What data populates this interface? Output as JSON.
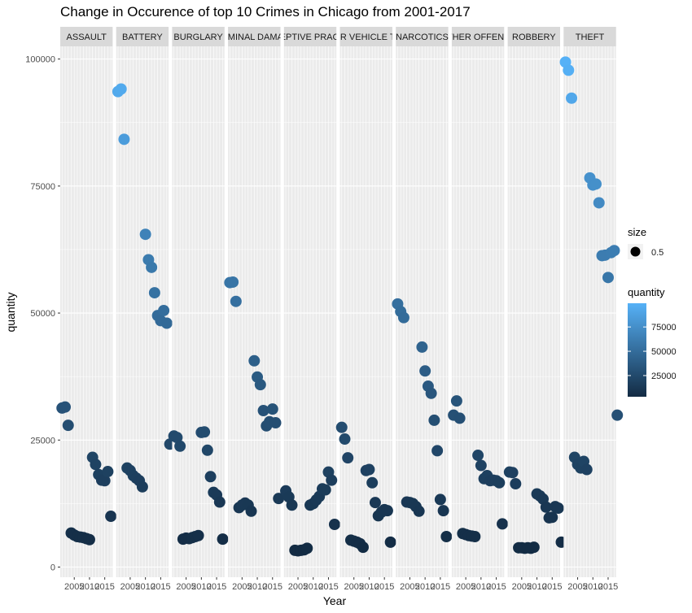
{
  "chart_data": {
    "type": "scatter",
    "title": "Change in Occurence of top 10 Crimes in Chicago from 2001-2017",
    "xlabel": "Year",
    "ylabel": "quantity",
    "xlim": [
      2000.4,
      2017.6
    ],
    "ylim": [
      -2000,
      102500
    ],
    "y_ticks": [
      0,
      25000,
      50000,
      75000,
      100000
    ],
    "y_tick_labels": [
      "0",
      "25000",
      "50000",
      "75000",
      "100000"
    ],
    "x_ticks": [
      2005,
      2010,
      2015
    ],
    "x_tick_labels": [
      "2005",
      "2010",
      "2015"
    ],
    "grid": true,
    "legend_position": "right",
    "facets": [
      {
        "label": "ASSAULT",
        "points": [
          [
            2001,
            31300
          ],
          [
            2002,
            31500
          ],
          [
            2003,
            27900
          ],
          [
            2004,
            6700
          ],
          [
            2005,
            6300
          ],
          [
            2006,
            6000
          ],
          [
            2007,
            5900
          ],
          [
            2008,
            5800
          ],
          [
            2009,
            5600
          ],
          [
            2010,
            5400
          ],
          [
            2011,
            21600
          ],
          [
            2012,
            20200
          ],
          [
            2013,
            18200
          ],
          [
            2014,
            17100
          ],
          [
            2015,
            17000
          ],
          [
            2016,
            18800
          ],
          [
            2017,
            10000
          ]
        ]
      },
      {
        "label": "BATTERY",
        "points": [
          [
            2001,
            93600
          ],
          [
            2002,
            94100
          ],
          [
            2003,
            84200
          ],
          [
            2004,
            19500
          ],
          [
            2005,
            19000
          ],
          [
            2006,
            18000
          ],
          [
            2007,
            17500
          ],
          [
            2008,
            17000
          ],
          [
            2009,
            15800
          ],
          [
            2010,
            65500
          ],
          [
            2011,
            60500
          ],
          [
            2012,
            59000
          ],
          [
            2013,
            54000
          ],
          [
            2014,
            49500
          ],
          [
            2015,
            48500
          ],
          [
            2016,
            50500
          ],
          [
            2017,
            48000
          ],
          [
            2018,
            24200
          ]
        ]
      },
      {
        "label": "BURGLARY",
        "points": [
          [
            2001,
            25800
          ],
          [
            2002,
            25500
          ],
          [
            2003,
            23800
          ],
          [
            2004,
            5500
          ],
          [
            2005,
            5700
          ],
          [
            2006,
            5600
          ],
          [
            2007,
            5800
          ],
          [
            2008,
            6000
          ],
          [
            2009,
            6200
          ],
          [
            2010,
            26500
          ],
          [
            2011,
            26600
          ],
          [
            2012,
            23000
          ],
          [
            2013,
            17800
          ],
          [
            2014,
            14700
          ],
          [
            2015,
            14200
          ],
          [
            2016,
            12800
          ],
          [
            2017,
            5500
          ]
        ]
      },
      {
        "label": "CRIMINAL DAMAGE",
        "points": [
          [
            2001,
            56000
          ],
          [
            2002,
            56100
          ],
          [
            2003,
            52300
          ],
          [
            2004,
            11700
          ],
          [
            2005,
            12200
          ],
          [
            2006,
            12600
          ],
          [
            2007,
            12200
          ],
          [
            2008,
            11000
          ],
          [
            2009,
            40600
          ],
          [
            2010,
            37400
          ],
          [
            2011,
            35900
          ],
          [
            2012,
            30800
          ],
          [
            2013,
            27800
          ],
          [
            2014,
            28600
          ],
          [
            2015,
            31100
          ],
          [
            2016,
            28400
          ],
          [
            2017,
            13500
          ]
        ]
      },
      {
        "label": "DECEPTIVE PRACTICE",
        "points": [
          [
            2001,
            15000
          ],
          [
            2002,
            13800
          ],
          [
            2003,
            12200
          ],
          [
            2004,
            3300
          ],
          [
            2005,
            3200
          ],
          [
            2006,
            3300
          ],
          [
            2007,
            3400
          ],
          [
            2008,
            3700
          ],
          [
            2009,
            12200
          ],
          [
            2010,
            12500
          ],
          [
            2011,
            13200
          ],
          [
            2012,
            13900
          ],
          [
            2013,
            15400
          ],
          [
            2014,
            15200
          ],
          [
            2015,
            18700
          ],
          [
            2016,
            17100
          ],
          [
            2017,
            8400
          ]
        ]
      },
      {
        "label": "MOTOR VEHICLE THEFT",
        "points": [
          [
            2001,
            27500
          ],
          [
            2002,
            25200
          ],
          [
            2003,
            21500
          ],
          [
            2004,
            5300
          ],
          [
            2005,
            5100
          ],
          [
            2006,
            4900
          ],
          [
            2007,
            4600
          ],
          [
            2008,
            3900
          ],
          [
            2009,
            19000
          ],
          [
            2010,
            19200
          ],
          [
            2011,
            16600
          ],
          [
            2012,
            12700
          ],
          [
            2013,
            10100
          ],
          [
            2014,
            10800
          ],
          [
            2015,
            11300
          ],
          [
            2016,
            11100
          ],
          [
            2017,
            4900
          ]
        ]
      },
      {
        "label": "NARCOTICS",
        "points": [
          [
            2001,
            51800
          ],
          [
            2002,
            50300
          ],
          [
            2003,
            49100
          ],
          [
            2004,
            12800
          ],
          [
            2005,
            12700
          ],
          [
            2006,
            12500
          ],
          [
            2007,
            11900
          ],
          [
            2008,
            11000
          ],
          [
            2009,
            43300
          ],
          [
            2010,
            38600
          ],
          [
            2011,
            35600
          ],
          [
            2012,
            34200
          ],
          [
            2013,
            28900
          ],
          [
            2014,
            22900
          ],
          [
            2015,
            13300
          ],
          [
            2016,
            11100
          ],
          [
            2017,
            6000
          ]
        ]
      },
      {
        "label": "OTHER OFFENSE",
        "points": [
          [
            2001,
            29900
          ],
          [
            2002,
            32700
          ],
          [
            2003,
            29300
          ],
          [
            2004,
            6600
          ],
          [
            2005,
            6400
          ],
          [
            2006,
            6200
          ],
          [
            2007,
            6100
          ],
          [
            2008,
            6000
          ],
          [
            2009,
            22000
          ],
          [
            2010,
            20000
          ],
          [
            2011,
            17400
          ],
          [
            2012,
            18000
          ],
          [
            2013,
            17000
          ],
          [
            2014,
            17100
          ],
          [
            2015,
            17000
          ],
          [
            2016,
            16600
          ],
          [
            2017,
            8500
          ]
        ]
      },
      {
        "label": "ROBBERY",
        "points": [
          [
            2001,
            18700
          ],
          [
            2002,
            18600
          ],
          [
            2003,
            16400
          ],
          [
            2004,
            3800
          ],
          [
            2005,
            3800
          ],
          [
            2006,
            3700
          ],
          [
            2007,
            3800
          ],
          [
            2008,
            3700
          ],
          [
            2009,
            3900
          ],
          [
            2010,
            14400
          ],
          [
            2011,
            14000
          ],
          [
            2012,
            13400
          ],
          [
            2013,
            11800
          ],
          [
            2014,
            9700
          ],
          [
            2015,
            9800
          ],
          [
            2016,
            11900
          ],
          [
            2017,
            11600
          ],
          [
            2018,
            4900
          ]
        ]
      },
      {
        "label": "THEFT",
        "points": [
          [
            2001,
            99400
          ],
          [
            2002,
            97800
          ],
          [
            2003,
            92300
          ],
          [
            2004,
            21600
          ],
          [
            2005,
            20200
          ],
          [
            2006,
            19500
          ],
          [
            2007,
            20800
          ],
          [
            2008,
            19200
          ],
          [
            2009,
            76600
          ],
          [
            2010,
            75200
          ],
          [
            2011,
            75400
          ],
          [
            2012,
            71700
          ],
          [
            2013,
            61300
          ],
          [
            2014,
            61400
          ],
          [
            2015,
            57000
          ],
          [
            2016,
            61900
          ],
          [
            2017,
            62300
          ],
          [
            2018,
            29900
          ]
        ]
      }
    ],
    "legend_size": {
      "title": "size",
      "label": "0.5"
    },
    "legend_color": {
      "title": "quantity",
      "min": 3200,
      "max": 99400,
      "labels": [
        "75000",
        "50000",
        "25000"
      ],
      "values": [
        75000,
        50000,
        25000
      ],
      "low_color": "#132B43",
      "high_color": "#56B1F7"
    },
    "colors": {
      "panel_bg": "#EBEBEB",
      "grid": "#FFFFFF",
      "strip_bg": "#D9D9D9"
    }
  }
}
